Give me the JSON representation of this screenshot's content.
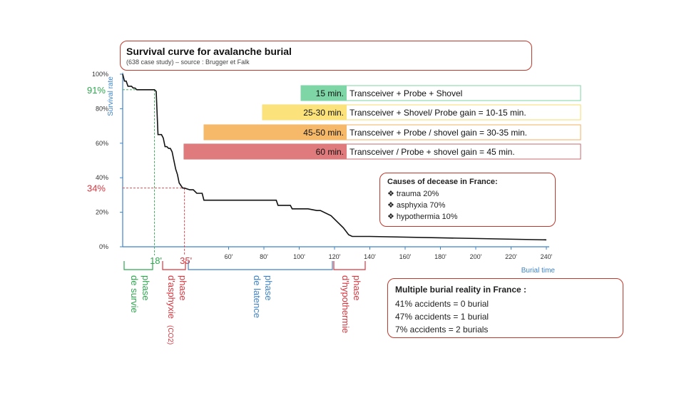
{
  "title": "Survival curve for avalanche burial",
  "subtitle": "(638 case study) – source : Brugger et Falk",
  "chart_data": {
    "type": "line",
    "ylabel": "Survival rate",
    "xlabel": "Burial time",
    "ylim": [
      0,
      100
    ],
    "xlim": [
      0,
      240
    ],
    "y_ticks": [
      "0%",
      "20%",
      "40%",
      "60%",
      "80%",
      "100%"
    ],
    "x_ticks": [
      "60'",
      "80'",
      "100'",
      "120'",
      "140'",
      "160'",
      "180'",
      "200'",
      "220'",
      "240'"
    ],
    "series": [
      {
        "x": [
          0,
          1,
          2,
          3,
          5,
          6,
          7,
          8,
          13,
          18,
          19,
          20,
          21,
          22,
          23,
          24,
          25,
          26,
          27,
          28,
          29,
          30,
          31,
          32,
          34,
          35,
          38,
          40,
          42,
          45,
          46,
          60,
          75,
          76,
          77,
          85,
          87,
          88,
          95,
          96,
          100,
          102,
          103,
          105,
          110,
          112,
          118,
          125,
          128,
          130,
          131,
          135,
          140,
          240
        ],
        "y": [
          100,
          96,
          96,
          93,
          93,
          92,
          92,
          91,
          91,
          91,
          90,
          65,
          65,
          65,
          63,
          58,
          58,
          57,
          57,
          55,
          50,
          45,
          42,
          37,
          34,
          34,
          33,
          33,
          31,
          31,
          27,
          27,
          27,
          27,
          27,
          27,
          27,
          24,
          24,
          22,
          22,
          22,
          22,
          22,
          21,
          21,
          18,
          11,
          7,
          6,
          6,
          6,
          6,
          4
        ]
      }
    ],
    "markers": [
      {
        "label": "91%",
        "x": 18,
        "y": 91,
        "color": "#2ea84f"
      },
      {
        "label": "34%",
        "x": 35,
        "y": 34,
        "color": "#d9363e"
      }
    ],
    "x_markers": [
      {
        "label": "18'",
        "x": 18,
        "color": "#2ea84f"
      },
      {
        "label": "35'",
        "x": 35,
        "color": "#d9363e"
      }
    ],
    "bands": [
      {
        "minutes": "15 min.",
        "text": "Transceiver + Probe + Shovel",
        "color": "#7ed6a6",
        "outline": "#7ed6a6"
      },
      {
        "minutes": "25-30 min.",
        "text": "Transceiver + Shovel/ Probe gain = 10-15 min.",
        "color": "#fbe27a",
        "outline": "#f5dd6e"
      },
      {
        "minutes": "45-50 min.",
        "text": "Transceiver + Probe / shovel gain = 30-35 min.",
        "color": "#f6b96a",
        "outline": "#f0b060"
      },
      {
        "minutes": "60 min.",
        "text": "Transceiver / Probe + shovel gain = 45 min.",
        "color": "#e07b7d",
        "outline": "#c96b6d"
      }
    ],
    "phases": [
      {
        "lines": [
          "de survie",
          "phase"
        ],
        "color": "#2ea84f"
      },
      {
        "lines": [
          "d'asphyxie",
          "phase"
        ],
        "suffix": "(CO2)",
        "color": "#d9363e"
      },
      {
        "lines": [
          "de latence",
          "phase"
        ],
        "color": "#3f83c4"
      },
      {
        "lines": [
          "d'hypothermie",
          "phase"
        ],
        "color": "#d9363e"
      }
    ]
  },
  "causes": {
    "heading": "Causes of decease in France:",
    "items": [
      "trauma 20%",
      "asphyxia 70%",
      "hypothermia 10%"
    ]
  },
  "multiple": {
    "heading": "Multiple burial reality in France :",
    "items": [
      "41% accidents = 0 burial",
      "47% accidents = 1 burial",
      "7% accidents = 2 burials"
    ]
  },
  "colors": {
    "axis_blue": "#3f83c4",
    "curve": "#111111",
    "box_border": "#c0392b"
  }
}
